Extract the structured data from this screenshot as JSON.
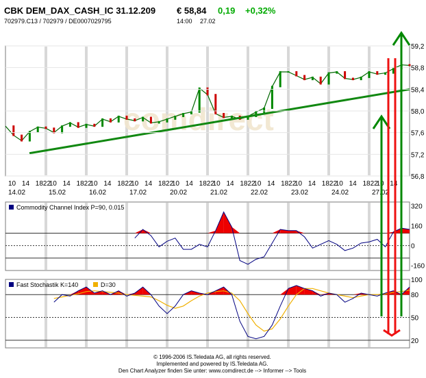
{
  "header": {
    "title": "CBK DEM_DAX_CASH_IC 31.12.209",
    "price": "€ 58,84",
    "change": "0,19",
    "change_pct": "+0,32%",
    "ids": "702979.C13  /  702979  /  DE0007029795",
    "time": "14:00",
    "date": "27.02"
  },
  "colors": {
    "price_line": "#006600",
    "candle_up": "#008800",
    "candle_down": "#cc0000",
    "trend_line": "#118811",
    "arrow_green": "#008800",
    "arrow_red": "#ee1111",
    "indicator_line": "#000080",
    "fill_red": "#ee0000",
    "d_line": "#f0b000",
    "watermark": "#f2ead8",
    "grid_col": "#d8d8d8"
  },
  "footer": {
    "line1": "© 1996-2006 IS.Teledata AG, all rights reserved.",
    "line2": "Implemented and powered by IS.Teledata AG.",
    "line3": "Den Chart Analyzer finden Sie unter: www.comdirect.de --> Informer --> Tools"
  },
  "watermark": "comdirect",
  "chart_data": [
    {
      "type": "line",
      "name": "price",
      "x_tick_labels": [
        "10",
        "14",
        "1822",
        "10",
        "14",
        "1822",
        "10",
        "14",
        "1822",
        "10",
        "14",
        "1822",
        "10",
        "14",
        "1822",
        "10",
        "14",
        "1822",
        "10",
        "14",
        "1822",
        "10",
        "14",
        "1822",
        "10",
        "14",
        "1822",
        "10",
        "14"
      ],
      "dates": [
        "14.02",
        "15.02",
        "16.02",
        "17.02",
        "20.02",
        "21.02",
        "22.02",
        "23.02",
        "24.02",
        "27.02"
      ],
      "ylim": [
        56.8,
        59.2
      ],
      "yticks": [
        56.8,
        57.2,
        57.6,
        58.0,
        58.4,
        58.8,
        59.2
      ],
      "ytick_labels": [
        "56,8",
        "57,2",
        "57,6",
        "58,0",
        "58,4",
        "58,8",
        "59,2"
      ],
      "x": [
        0,
        2,
        4,
        6,
        8,
        10,
        12,
        14,
        16,
        18,
        20,
        22,
        24,
        26,
        28,
        30,
        32,
        34,
        36,
        38,
        40,
        42,
        44,
        46,
        48,
        50,
        52,
        54,
        56,
        58,
        60,
        62,
        64,
        66,
        68,
        70,
        72,
        74,
        76,
        78,
        80,
        82,
        84,
        86,
        88,
        90,
        92,
        94,
        96,
        98,
        100
      ],
      "values": [
        57.72,
        57.55,
        57.45,
        57.62,
        57.7,
        57.68,
        57.6,
        57.72,
        57.78,
        57.7,
        57.75,
        57.72,
        57.85,
        57.8,
        57.9,
        57.85,
        57.82,
        57.88,
        57.78,
        57.8,
        57.85,
        57.9,
        57.95,
        57.98,
        58.42,
        58.3,
        57.95,
        57.88,
        57.9,
        57.85,
        57.9,
        57.98,
        58.05,
        58.45,
        58.72,
        58.72,
        58.65,
        58.58,
        58.62,
        58.5,
        58.7,
        58.72,
        58.6,
        58.58,
        58.62,
        58.72,
        58.68,
        58.7,
        58.78,
        58.85,
        58.84
      ],
      "trend_line": {
        "x": [
          0,
          100
        ],
        "y": [
          57.22,
          58.4
        ]
      }
    },
    {
      "type": "line",
      "name": "cci",
      "legend": "Commodity Channel Index P=90, 0.015",
      "ylim": [
        -200,
        350
      ],
      "yticks": [
        320,
        160,
        0,
        -160
      ],
      "ytick_labels": [
        "320",
        "160",
        "0",
        "-160"
      ],
      "threshold": 100,
      "x": [
        32,
        34,
        36,
        38,
        40,
        42,
        44,
        46,
        48,
        50,
        52,
        54,
        56,
        58,
        60,
        62,
        64,
        66,
        68,
        70,
        72,
        74,
        76,
        78,
        80,
        82,
        84,
        86,
        88,
        90,
        92,
        94,
        96,
        98,
        100
      ],
      "values": [
        60,
        130,
        80,
        -10,
        35,
        60,
        -30,
        -30,
        10,
        -10,
        120,
        270,
        150,
        -120,
        -150,
        -110,
        -90,
        20,
        130,
        120,
        120,
        70,
        -20,
        10,
        40,
        10,
        -40,
        -20,
        20,
        30,
        50,
        -10,
        110,
        140,
        130
      ]
    },
    {
      "type": "line",
      "name": "stochastic",
      "legend_k": "Fast Stochastik K=140",
      "legend_d": "D=30",
      "ylim": [
        10,
        100
      ],
      "yticks": [
        100,
        80,
        50,
        20
      ],
      "ytick_labels": [
        "100",
        "80",
        "50",
        "20"
      ],
      "lines": [
        80,
        50,
        20
      ],
      "x": [
        12,
        14,
        16,
        18,
        20,
        22,
        24,
        26,
        28,
        30,
        32,
        34,
        36,
        38,
        40,
        42,
        44,
        46,
        48,
        50,
        52,
        54,
        56,
        58,
        60,
        62,
        64,
        66,
        68,
        70,
        72,
        74,
        76,
        78,
        80,
        82,
        84,
        86,
        88,
        90,
        92,
        94,
        96,
        98,
        100
      ],
      "k": [
        70,
        80,
        78,
        85,
        90,
        82,
        85,
        80,
        85,
        78,
        82,
        90,
        80,
        65,
        55,
        65,
        80,
        85,
        82,
        80,
        85,
        90,
        80,
        45,
        25,
        22,
        25,
        40,
        65,
        88,
        92,
        88,
        85,
        78,
        82,
        80,
        70,
        75,
        82,
        80,
        78,
        82,
        85,
        80,
        90
      ],
      "d": [
        75,
        77,
        79,
        81,
        84,
        85,
        84,
        83,
        82,
        80,
        79,
        78,
        77,
        72,
        66,
        62,
        65,
        72,
        78,
        82,
        84,
        85,
        82,
        72,
        55,
        40,
        32,
        35,
        48,
        65,
        80,
        88,
        88,
        85,
        82,
        80,
        78,
        76,
        78,
        80,
        80,
        81,
        83,
        84,
        86
      ]
    }
  ]
}
